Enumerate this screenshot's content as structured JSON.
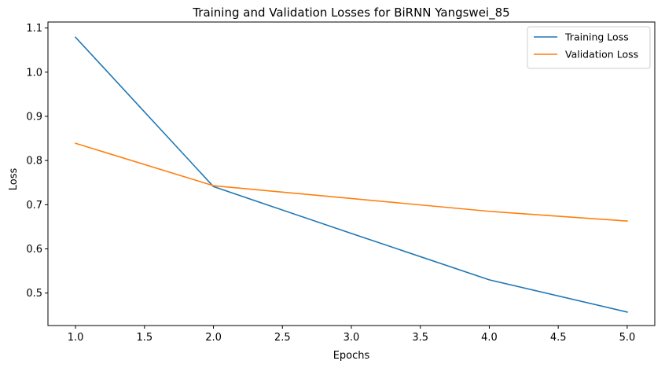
{
  "chart_data": {
    "type": "line",
    "title": "Training and Validation Losses for BiRNN Yangswei_85",
    "xlabel": "Epochs",
    "ylabel": "Loss",
    "x": [
      1,
      2,
      3,
      4,
      5
    ],
    "xlim": [
      0.8,
      5.2
    ],
    "ylim": [
      0.4265,
      1.1135
    ],
    "xticks": [
      1.0,
      1.5,
      2.0,
      2.5,
      3.0,
      3.5,
      4.0,
      4.5,
      5.0
    ],
    "xtick_labels": [
      "1.0",
      "1.5",
      "2.0",
      "2.5",
      "3.0",
      "3.5",
      "4.0",
      "4.5",
      "5.0"
    ],
    "yticks": [
      0.5,
      0.6,
      0.7,
      0.8,
      0.9,
      1.0,
      1.1
    ],
    "ytick_labels": [
      "0.5",
      "0.6",
      "0.7",
      "0.8",
      "0.9",
      "1.0",
      "1.1"
    ],
    "grid": false,
    "legend_position": "top-right",
    "series": [
      {
        "name": "Training Loss",
        "color": "#1f77b4",
        "values": [
          1.079,
          0.741,
          0.635,
          0.53,
          0.457
        ]
      },
      {
        "name": "Validation Loss",
        "color": "#ff7f0e",
        "values": [
          0.839,
          0.743,
          0.714,
          0.685,
          0.663
        ]
      }
    ]
  }
}
